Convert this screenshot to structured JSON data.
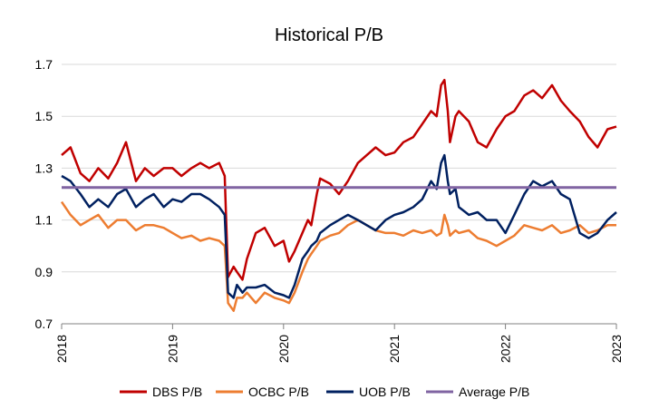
{
  "chart_data": {
    "type": "line",
    "title": "Historical P/B",
    "xlabel": "",
    "ylabel": "",
    "xlim": [
      2018,
      2023
    ],
    "ylim": [
      0.7,
      1.7
    ],
    "x_ticks": [
      "2018",
      "2019",
      "2020",
      "2021",
      "2022",
      "2023"
    ],
    "y_ticks": [
      "0.7",
      "0.9",
      "1.1",
      "1.3",
      "1.5",
      "1.7"
    ],
    "grid": "horizontal",
    "legend_position": "bottom",
    "series": [
      {
        "name": "DBS P/B",
        "color": "#c00000",
        "x": [
          2018.0,
          2018.08,
          2018.17,
          2018.25,
          2018.33,
          2018.42,
          2018.5,
          2018.58,
          2018.67,
          2018.75,
          2018.83,
          2018.92,
          2019.0,
          2019.08,
          2019.17,
          2019.25,
          2019.33,
          2019.42,
          2019.47,
          2019.5,
          2019.55,
          2019.58,
          2019.63,
          2019.67,
          2019.75,
          2019.83,
          2019.92,
          2020.0,
          2020.05,
          2020.1,
          2020.17,
          2020.22,
          2020.25,
          2020.3,
          2020.33,
          2020.42,
          2020.5,
          2020.58,
          2020.67,
          2020.75,
          2020.83,
          2020.92,
          2021.0,
          2021.08,
          2021.17,
          2021.25,
          2021.33,
          2021.38,
          2021.42,
          2021.45,
          2021.48,
          2021.5,
          2021.55,
          2021.58,
          2021.67,
          2021.75,
          2021.83,
          2021.92,
          2022.0,
          2022.08,
          2022.17,
          2022.25,
          2022.33,
          2022.42,
          2022.5,
          2022.58,
          2022.67,
          2022.75,
          2022.83,
          2022.92,
          2023.0
        ],
        "values": [
          1.35,
          1.38,
          1.28,
          1.25,
          1.3,
          1.26,
          1.32,
          1.4,
          1.25,
          1.3,
          1.27,
          1.3,
          1.3,
          1.27,
          1.3,
          1.32,
          1.3,
          1.32,
          1.27,
          0.88,
          0.92,
          0.9,
          0.87,
          0.95,
          1.05,
          1.07,
          1.0,
          1.02,
          0.94,
          0.98,
          1.05,
          1.1,
          1.08,
          1.2,
          1.26,
          1.24,
          1.2,
          1.25,
          1.32,
          1.35,
          1.38,
          1.35,
          1.36,
          1.4,
          1.42,
          1.47,
          1.52,
          1.5,
          1.62,
          1.64,
          1.52,
          1.4,
          1.5,
          1.52,
          1.48,
          1.4,
          1.38,
          1.45,
          1.5,
          1.52,
          1.58,
          1.6,
          1.57,
          1.62,
          1.56,
          1.52,
          1.48,
          1.42,
          1.38,
          1.45,
          1.46
        ]
      },
      {
        "name": "OCBC P/B",
        "color": "#ed7d31",
        "x": [
          2018.0,
          2018.08,
          2018.17,
          2018.25,
          2018.33,
          2018.42,
          2018.5,
          2018.58,
          2018.67,
          2018.75,
          2018.83,
          2018.92,
          2019.0,
          2019.08,
          2019.17,
          2019.25,
          2019.33,
          2019.42,
          2019.47,
          2019.5,
          2019.55,
          2019.58,
          2019.63,
          2019.67,
          2019.75,
          2019.83,
          2019.92,
          2020.0,
          2020.05,
          2020.1,
          2020.17,
          2020.22,
          2020.25,
          2020.3,
          2020.33,
          2020.42,
          2020.5,
          2020.58,
          2020.67,
          2020.75,
          2020.83,
          2020.92,
          2021.0,
          2021.08,
          2021.17,
          2021.25,
          2021.33,
          2021.38,
          2021.42,
          2021.45,
          2021.48,
          2021.5,
          2021.55,
          2021.58,
          2021.67,
          2021.75,
          2021.83,
          2021.92,
          2022.0,
          2022.08,
          2022.17,
          2022.25,
          2022.33,
          2022.42,
          2022.5,
          2022.58,
          2022.67,
          2022.75,
          2022.83,
          2022.92,
          2023.0
        ],
        "values": [
          1.17,
          1.12,
          1.08,
          1.1,
          1.12,
          1.07,
          1.1,
          1.1,
          1.06,
          1.08,
          1.08,
          1.07,
          1.05,
          1.03,
          1.04,
          1.02,
          1.03,
          1.02,
          1.0,
          0.78,
          0.75,
          0.8,
          0.8,
          0.82,
          0.78,
          0.82,
          0.8,
          0.79,
          0.78,
          0.82,
          0.9,
          0.95,
          0.97,
          1.0,
          1.02,
          1.04,
          1.05,
          1.08,
          1.1,
          1.08,
          1.06,
          1.05,
          1.05,
          1.04,
          1.06,
          1.05,
          1.06,
          1.04,
          1.05,
          1.12,
          1.08,
          1.04,
          1.06,
          1.05,
          1.06,
          1.03,
          1.02,
          1.0,
          1.02,
          1.04,
          1.08,
          1.07,
          1.06,
          1.08,
          1.05,
          1.06,
          1.08,
          1.05,
          1.06,
          1.08,
          1.08
        ]
      },
      {
        "name": "UOB P/B",
        "color": "#002060",
        "x": [
          2018.0,
          2018.08,
          2018.17,
          2018.25,
          2018.33,
          2018.42,
          2018.5,
          2018.58,
          2018.67,
          2018.75,
          2018.83,
          2018.92,
          2019.0,
          2019.08,
          2019.17,
          2019.25,
          2019.33,
          2019.42,
          2019.47,
          2019.5,
          2019.55,
          2019.58,
          2019.63,
          2019.67,
          2019.75,
          2019.83,
          2019.92,
          2020.0,
          2020.05,
          2020.1,
          2020.17,
          2020.22,
          2020.25,
          2020.3,
          2020.33,
          2020.42,
          2020.5,
          2020.58,
          2020.67,
          2020.75,
          2020.83,
          2020.92,
          2021.0,
          2021.08,
          2021.17,
          2021.25,
          2021.33,
          2021.38,
          2021.42,
          2021.45,
          2021.48,
          2021.5,
          2021.55,
          2021.58,
          2021.67,
          2021.75,
          2021.83,
          2021.92,
          2022.0,
          2022.08,
          2022.17,
          2022.25,
          2022.33,
          2022.42,
          2022.5,
          2022.58,
          2022.67,
          2022.75,
          2022.83,
          2022.92,
          2023.0
        ],
        "values": [
          1.27,
          1.25,
          1.2,
          1.15,
          1.18,
          1.15,
          1.2,
          1.22,
          1.15,
          1.18,
          1.2,
          1.15,
          1.18,
          1.17,
          1.2,
          1.2,
          1.18,
          1.15,
          1.12,
          0.82,
          0.8,
          0.85,
          0.82,
          0.84,
          0.84,
          0.85,
          0.82,
          0.81,
          0.8,
          0.85,
          0.95,
          0.98,
          1.0,
          1.02,
          1.05,
          1.08,
          1.1,
          1.12,
          1.1,
          1.08,
          1.06,
          1.1,
          1.12,
          1.13,
          1.15,
          1.18,
          1.25,
          1.22,
          1.32,
          1.35,
          1.25,
          1.2,
          1.22,
          1.15,
          1.12,
          1.13,
          1.1,
          1.1,
          1.05,
          1.12,
          1.2,
          1.25,
          1.23,
          1.25,
          1.2,
          1.18,
          1.05,
          1.03,
          1.05,
          1.1,
          1.13
        ]
      },
      {
        "name": "Average P/B",
        "color": "#8064a2",
        "x": [
          2018.0,
          2023.0
        ],
        "values": [
          1.225,
          1.225
        ]
      }
    ]
  }
}
